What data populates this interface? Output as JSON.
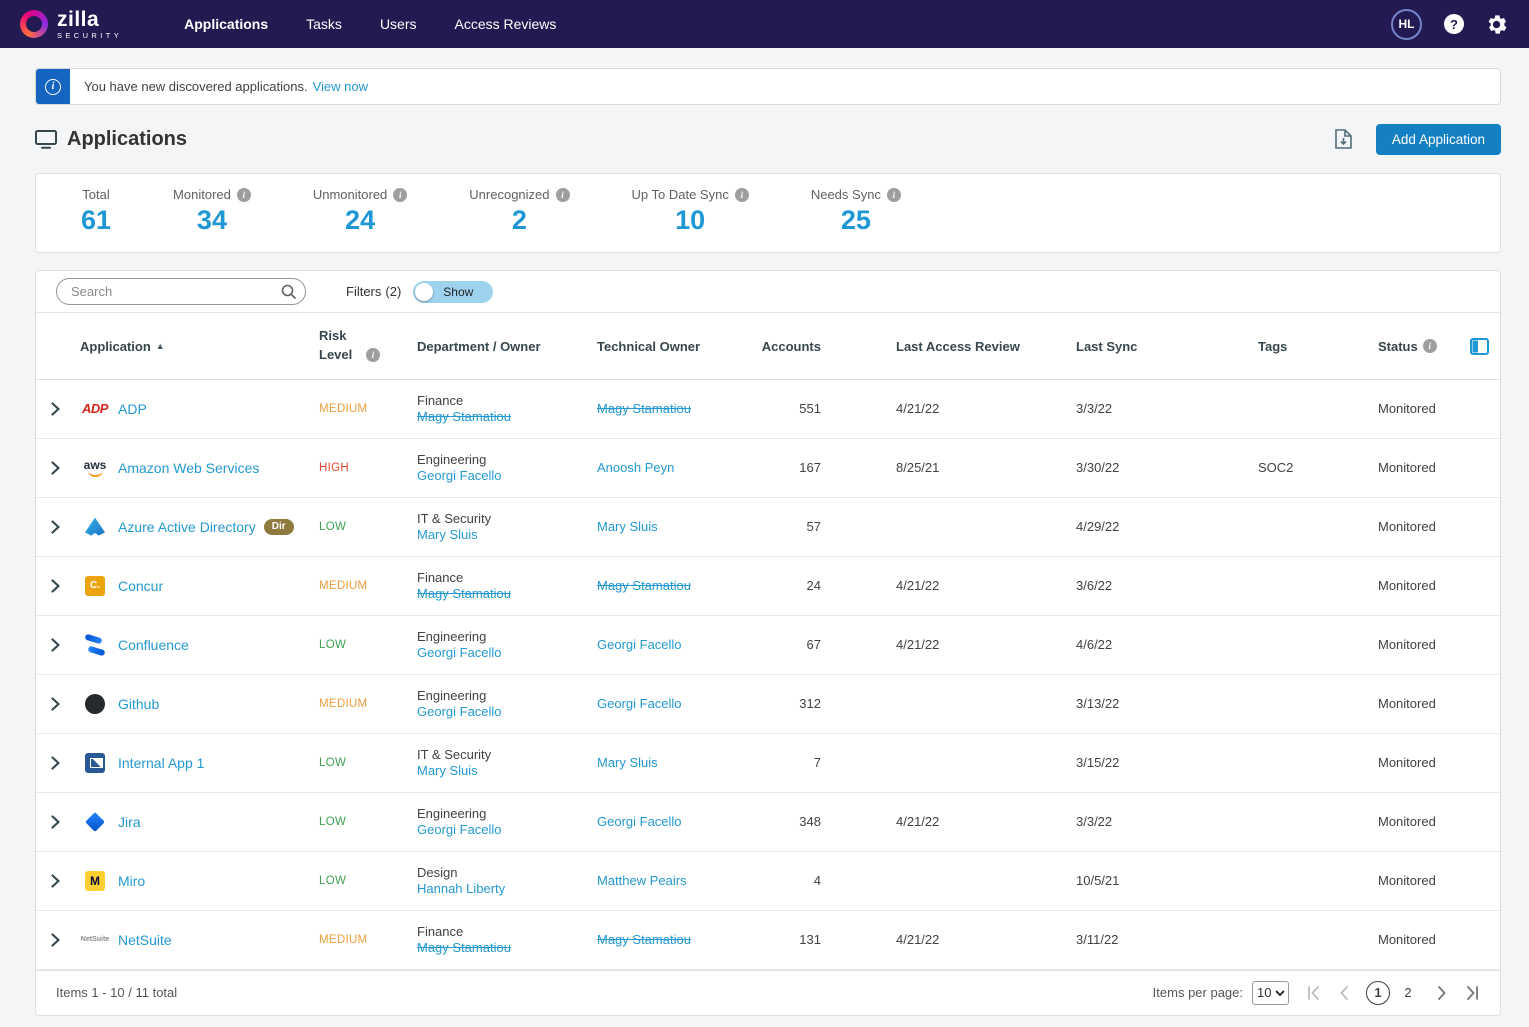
{
  "navbar": {
    "brand": {
      "name": "zilla",
      "subtitle": "SECURITY"
    },
    "items": [
      {
        "label": "Applications"
      },
      {
        "label": "Tasks"
      },
      {
        "label": "Users"
      },
      {
        "label": "Access Reviews"
      }
    ],
    "active_item": "Applications",
    "avatar_initials": "HL"
  },
  "banner": {
    "message": "You have new discovered applications.",
    "link_label": "View now"
  },
  "page_header": {
    "title": "Applications",
    "add_button_label": "Add Application"
  },
  "stats": [
    {
      "label": "Total",
      "value": "61",
      "info": false
    },
    {
      "label": "Monitored",
      "value": "34",
      "info": true
    },
    {
      "label": "Unmonitored",
      "value": "24",
      "info": true
    },
    {
      "label": "Unrecognized",
      "value": "2",
      "info": true
    },
    {
      "label": "Up To Date Sync",
      "value": "10",
      "info": true
    },
    {
      "label": "Needs Sync",
      "value": "25",
      "info": true
    }
  ],
  "toolbar": {
    "search_placeholder": "Search",
    "filters_label": "Filters",
    "filters_count": "(2)",
    "show_toggle_label": "Show",
    "toggle_state": "on"
  },
  "table": {
    "columns": [
      "Application",
      "Risk Level",
      "Department / Owner",
      "Technical Owner",
      "Accounts",
      "Last Access Review",
      "Last Sync",
      "Tags",
      "Status"
    ],
    "sorted_by": "Application",
    "sort_direction": "asc",
    "rows": [
      {
        "icon": "adp",
        "name": "ADP",
        "badge": null,
        "risk": "MEDIUM",
        "department": "Finance",
        "owner": "Magy Stamatiou",
        "owner_struck": true,
        "technical_owner": "Magy Stamatiou",
        "tech_struck": true,
        "accounts": "551",
        "last_access_review": "4/21/22",
        "last_sync": "3/3/22",
        "tags": "",
        "status": "Monitored"
      },
      {
        "icon": "aws",
        "name": "Amazon Web Services",
        "badge": null,
        "risk": "HIGH",
        "department": "Engineering",
        "owner": "Georgi Facello",
        "owner_struck": false,
        "technical_owner": "Anoosh Peyn",
        "tech_struck": false,
        "accounts": "167",
        "last_access_review": "8/25/21",
        "last_sync": "3/30/22",
        "tags": "SOC2",
        "status": "Monitored"
      },
      {
        "icon": "azure-ad",
        "name": "Azure Active Directory",
        "badge": "Dir",
        "risk": "LOW",
        "department": "IT & Security",
        "owner": "Mary Sluis",
        "owner_struck": false,
        "technical_owner": "Mary Sluis",
        "tech_struck": false,
        "accounts": "57",
        "last_access_review": "",
        "last_sync": "4/29/22",
        "tags": "",
        "status": "Monitored"
      },
      {
        "icon": "concur",
        "name": "Concur",
        "badge": null,
        "risk": "MEDIUM",
        "department": "Finance",
        "owner": "Magy Stamatiou",
        "owner_struck": true,
        "technical_owner": "Magy Stamatiou",
        "tech_struck": true,
        "accounts": "24",
        "last_access_review": "4/21/22",
        "last_sync": "3/6/22",
        "tags": "",
        "status": "Monitored"
      },
      {
        "icon": "confluence",
        "name": "Confluence",
        "badge": null,
        "risk": "LOW",
        "department": "Engineering",
        "owner": "Georgi Facello",
        "owner_struck": false,
        "technical_owner": "Georgi Facello",
        "tech_struck": false,
        "accounts": "67",
        "last_access_review": "4/21/22",
        "last_sync": "4/6/22",
        "tags": "",
        "status": "Monitored"
      },
      {
        "icon": "github",
        "name": "Github",
        "badge": null,
        "risk": "MEDIUM",
        "department": "Engineering",
        "owner": "Georgi Facello",
        "owner_struck": false,
        "technical_owner": "Georgi Facello",
        "tech_struck": false,
        "accounts": "312",
        "last_access_review": "",
        "last_sync": "3/13/22",
        "tags": "",
        "status": "Monitored"
      },
      {
        "icon": "internal-app",
        "name": "Internal App 1",
        "badge": null,
        "risk": "LOW",
        "department": "IT & Security",
        "owner": "Mary Sluis",
        "owner_struck": false,
        "technical_owner": "Mary Sluis",
        "tech_struck": false,
        "accounts": "7",
        "last_access_review": "",
        "last_sync": "3/15/22",
        "tags": "",
        "status": "Monitored"
      },
      {
        "icon": "jira",
        "name": "Jira",
        "badge": null,
        "risk": "LOW",
        "department": "Engineering",
        "owner": "Georgi Facello",
        "owner_struck": false,
        "technical_owner": "Georgi Facello",
        "tech_struck": false,
        "accounts": "348",
        "last_access_review": "4/21/22",
        "last_sync": "3/3/22",
        "tags": "",
        "status": "Monitored"
      },
      {
        "icon": "miro",
        "name": "Miro",
        "badge": null,
        "risk": "LOW",
        "department": "Design",
        "owner": "Hannah Liberty",
        "owner_struck": false,
        "technical_owner": "Matthew Peairs",
        "tech_struck": false,
        "accounts": "4",
        "last_access_review": "",
        "last_sync": "10/5/21",
        "tags": "",
        "status": "Monitored"
      },
      {
        "icon": "netsuite",
        "name": "NetSuite",
        "badge": null,
        "risk": "MEDIUM",
        "department": "Finance",
        "owner": "Magy Stamatiou",
        "owner_struck": true,
        "technical_owner": "Magy Stamatiou",
        "tech_struck": true,
        "accounts": "131",
        "last_access_review": "4/21/22",
        "last_sync": "3/11/22",
        "tags": "",
        "status": "Monitored"
      }
    ]
  },
  "app_icons": {
    "adp": {
      "text": "ADP"
    },
    "aws": {
      "text": "aws"
    },
    "azure-ad": {
      "text": ""
    },
    "concur": {
      "text": "C."
    },
    "confluence": {
      "text": ""
    },
    "github": {
      "text": ""
    },
    "internal-app": {
      "text": ""
    },
    "jira": {
      "text": ""
    },
    "miro": {
      "text": "M"
    },
    "netsuite": {
      "text": "NetSuite"
    }
  },
  "footer": {
    "items_summary": "Items 1 - 10 / 11 total",
    "items_per_page_label": "Items per page:",
    "items_per_page_value": "10",
    "pages": [
      "1",
      "2"
    ],
    "current_page": "1"
  },
  "colors": {
    "navbar_bg": "#231a52",
    "accent_blue": "#1f97d4",
    "link_blue": "#2499d1",
    "button_blue": "#1480c4",
    "banner_info_bg": "#1565c0",
    "risk_high": "#e8442e",
    "risk_medium": "#eb9e3e",
    "risk_low": "#3fa052"
  }
}
